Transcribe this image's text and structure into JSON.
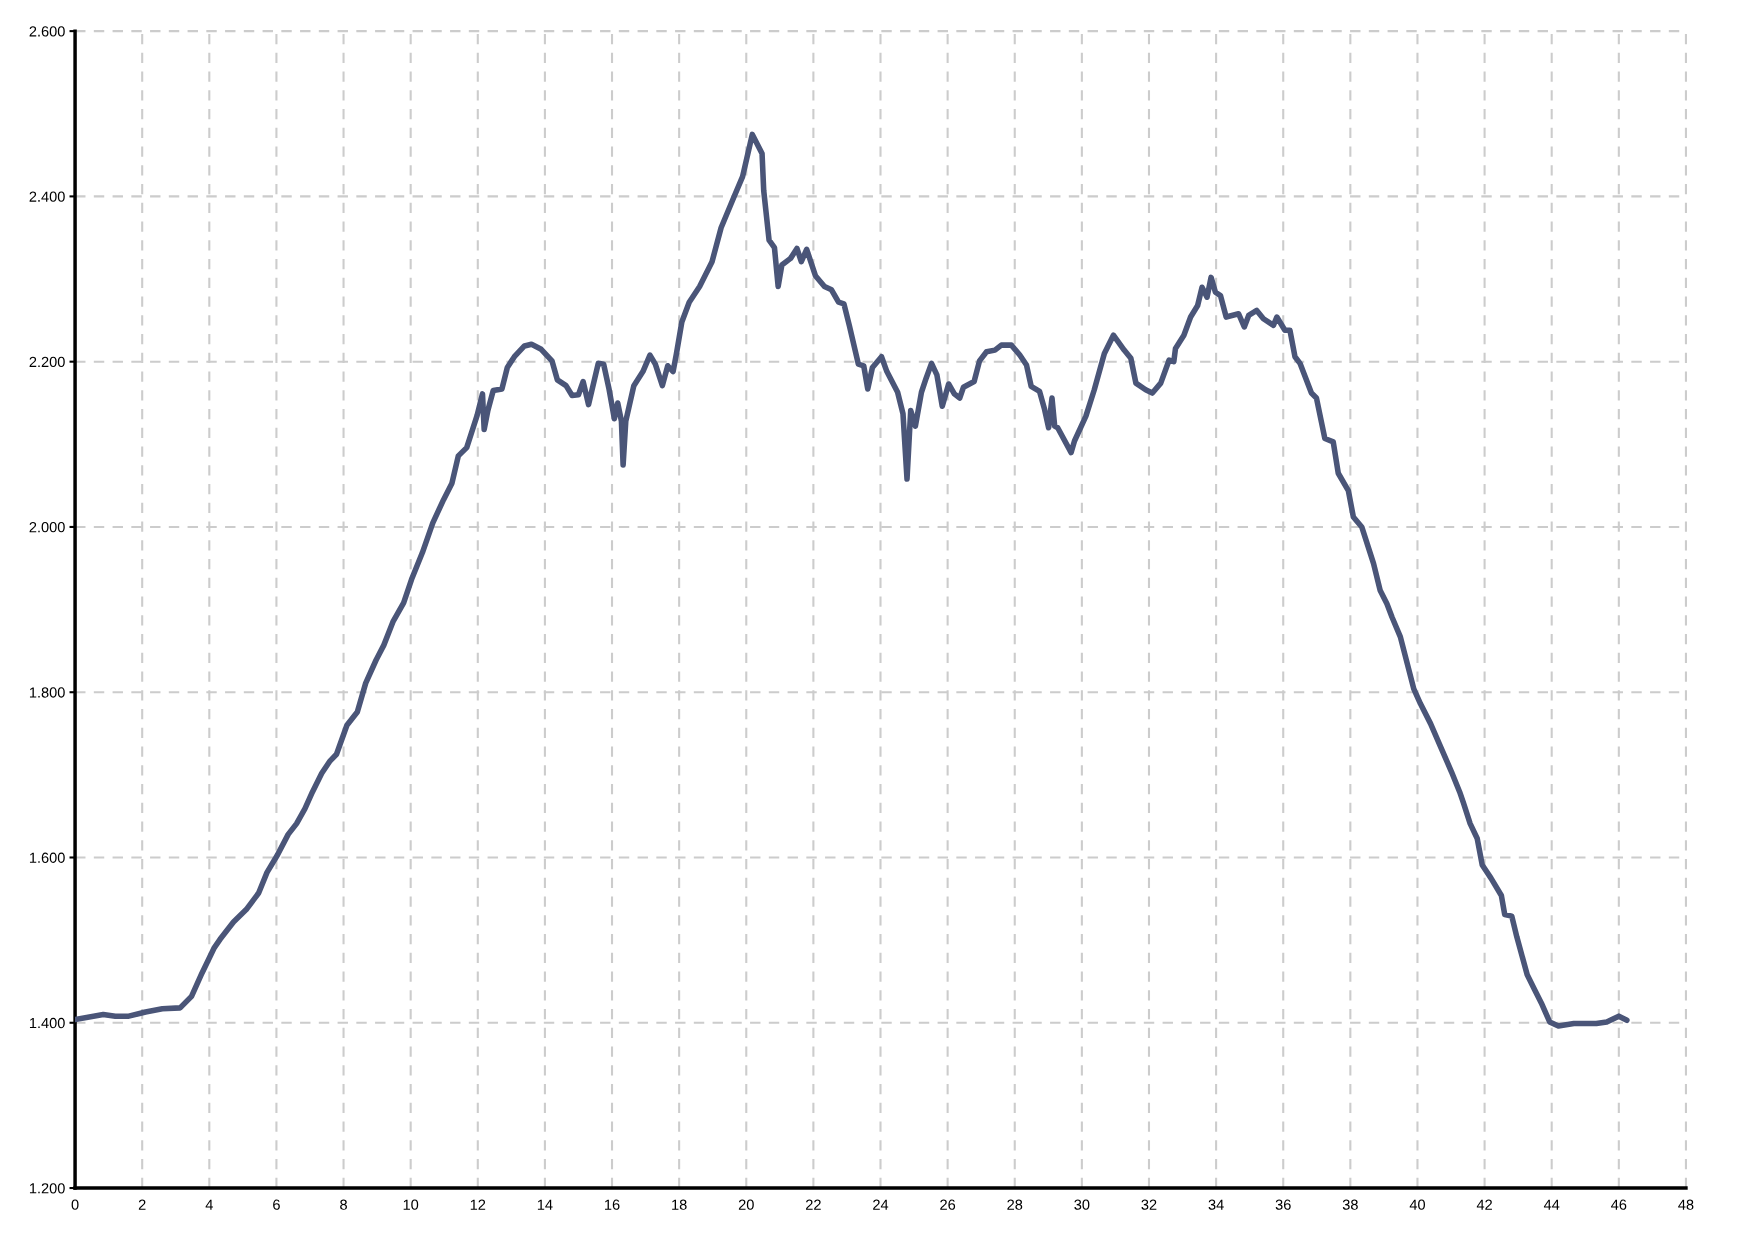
{
  "chart_data": {
    "type": "line",
    "x": [
      0,
      0.84,
      1.2,
      1.6,
      2.1,
      2.6,
      3.13,
      3.47,
      3.78,
      4.15,
      4.32,
      4.72,
      5.1,
      5.47,
      5.72,
      6.03,
      6.35,
      6.6,
      6.85,
      7.07,
      7.35,
      7.6,
      7.79,
      8.1,
      8.41,
      8.66,
      8.97,
      9.2,
      9.47,
      9.79,
      10.04,
      10.35,
      10.66,
      10.98,
      11.23,
      11.42,
      11.67,
      11.98,
      12.14,
      12.19,
      12.3,
      12.46,
      12.72,
      12.88,
      13.09,
      13.39,
      13.6,
      13.89,
      14.21,
      14.37,
      14.63,
      14.81,
      15.0,
      15.14,
      15.3,
      15.59,
      15.75,
      15.91,
      16.07,
      16.17,
      16.28,
      16.33,
      16.41,
      16.65,
      16.92,
      17.13,
      17.29,
      17.5,
      17.66,
      17.82,
      17.92,
      18.08,
      18.3,
      18.61,
      18.98,
      19.25,
      19.62,
      19.89,
      20.18,
      20.47,
      20.52,
      20.68,
      20.84,
      20.95,
      21.06,
      21.32,
      21.51,
      21.64,
      21.8,
      22.06,
      22.33,
      22.54,
      22.75,
      22.91,
      23.07,
      23.34,
      23.5,
      23.62,
      23.76,
      24.03,
      24.19,
      24.51,
      24.67,
      24.79,
      24.9,
      25.04,
      25.22,
      25.36,
      25.52,
      25.68,
      25.84,
      26.03,
      26.2,
      26.36,
      26.47,
      26.79,
      26.95,
      27.16,
      27.41,
      27.6,
      27.9,
      28.15,
      28.35,
      28.49,
      28.74,
      28.89,
      29.01,
      29.11,
      29.19,
      29.28,
      29.68,
      29.78,
      30.12,
      30.37,
      30.67,
      30.94,
      31.26,
      31.46,
      31.61,
      31.9,
      32.1,
      32.35,
      32.6,
      32.74,
      32.79,
      33.04,
      33.24,
      33.45,
      33.58,
      33.73,
      33.85,
      33.98,
      34.13,
      34.3,
      34.67,
      34.84,
      34.97,
      35.21,
      35.41,
      35.71,
      35.81,
      36.05,
      36.2,
      36.35,
      36.5,
      36.84,
      36.99,
      37.24,
      37.49,
      37.64,
      37.94,
      38.09,
      38.34,
      38.69,
      38.89,
      39.09,
      39.24,
      39.49,
      39.89,
      40.09,
      40.39,
      40.7,
      41.01,
      41.26,
      41.37,
      41.57,
      41.78,
      41.93,
      42.19,
      42.5,
      42.6,
      42.81,
      42.96,
      43.27,
      43.48,
      43.69,
      43.94,
      44.2,
      44.66,
      45.33,
      45.64,
      46.0,
      46.24
    ],
    "series": [
      {
        "color": "#4a5578",
        "values": [
          1404,
          1410,
          1408,
          1408,
          1413,
          1417,
          1418,
          1432,
          1460,
          1491,
          1501,
          1522,
          1537,
          1557,
          1582,
          1603,
          1628,
          1641,
          1659,
          1679,
          1702,
          1717,
          1725,
          1760,
          1776,
          1811,
          1839,
          1857,
          1885,
          1908,
          1938,
          1969,
          2005,
          2033,
          2053,
          2086,
          2096,
          2135,
          2161,
          2118,
          2141,
          2165,
          2167,
          2193,
          2206,
          2219,
          2221,
          2215,
          2201,
          2178,
          2171,
          2159,
          2160,
          2176,
          2148,
          2198,
          2197,
          2167,
          2131,
          2150,
          2128,
          2075,
          2128,
          2171,
          2188,
          2208,
          2197,
          2171,
          2195,
          2188,
          2210,
          2248,
          2272,
          2291,
          2321,
          2362,
          2398,
          2424,
          2475,
          2452,
          2407,
          2347,
          2338,
          2291,
          2317,
          2325,
          2337,
          2321,
          2336,
          2304,
          2291,
          2287,
          2272,
          2270,
          2244,
          2197,
          2195,
          2167,
          2193,
          2206,
          2188,
          2163,
          2137,
          2058,
          2141,
          2122,
          2163,
          2180,
          2198,
          2184,
          2146,
          2173,
          2161,
          2156,
          2169,
          2176,
          2201,
          2212,
          2214,
          2220,
          2220,
          2208,
          2196,
          2170,
          2164,
          2142,
          2120,
          2156,
          2122,
          2120,
          2090,
          2104,
          2134,
          2166,
          2210,
          2232,
          2214,
          2204,
          2174,
          2166,
          2162,
          2174,
          2202,
          2200,
          2216,
          2232,
          2254,
          2268,
          2290,
          2278,
          2302,
          2284,
          2280,
          2254,
          2258,
          2242,
          2256,
          2262,
          2252,
          2244,
          2254,
          2238,
          2238,
          2206,
          2198,
          2162,
          2156,
          2107,
          2103,
          2065,
          2044,
          2012,
          2000,
          1956,
          1923,
          1907,
          1891,
          1867,
          1804,
          1786,
          1762,
          1733,
          1704,
          1679,
          1666,
          1641,
          1623,
          1591,
          1575,
          1554,
          1531,
          1529,
          1504,
          1458,
          1441,
          1424,
          1401,
          1396,
          1399,
          1399,
          1401,
          1408,
          1403
        ]
      }
    ],
    "xlim": [
      0,
      48
    ],
    "xticks": [
      0,
      2,
      4,
      6,
      8,
      10,
      12,
      14,
      16,
      18,
      20,
      22,
      24,
      26,
      28,
      30,
      32,
      34,
      36,
      38,
      40,
      42,
      44,
      46,
      48
    ],
    "ylim": [
      1200,
      2600
    ],
    "yticks": [
      {
        "value": 1200,
        "label": "1.200"
      },
      {
        "value": 1400,
        "label": "1.400"
      },
      {
        "value": 1600,
        "label": "1.600"
      },
      {
        "value": 1800,
        "label": "1.800"
      },
      {
        "value": 2000,
        "label": "2.000"
      },
      {
        "value": 2200,
        "label": "2.200"
      },
      {
        "value": 2400,
        "label": "2.400"
      },
      {
        "value": 2600,
        "label": "2.600"
      }
    ],
    "grid": true,
    "line_style": "solid"
  }
}
